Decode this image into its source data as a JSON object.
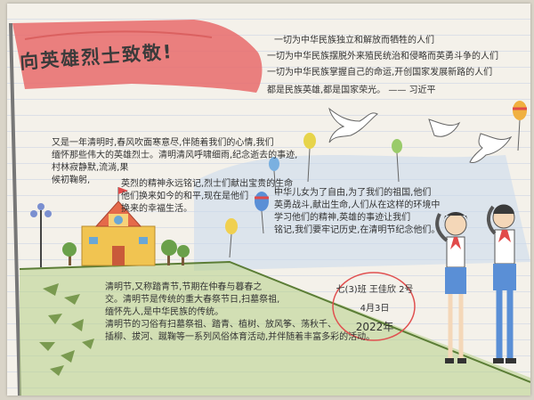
{
  "banner": {
    "title": "向英雄烈士致敬!",
    "flag_color": "#e86b6b"
  },
  "quote": {
    "lines": [
      "一切为中华民族独立和解放而牺牲的人们",
      "一切为中华民族摆脱外来殖民统治和侵略而英勇斗争的人们",
      "一切为中华民族掌握自己的命运,开创国家发展新路的人们",
      "都是民族英雄,都是国家荣光。 —— 习近平"
    ]
  },
  "left_story": {
    "lines": [
      "又是一年清明时,春风吹面寒意尽,伴随着我们的心情,我们",
      "缅怀那些伟大的英雄烈士。清明清风呼啸细雨,纪念逝去的事迹,",
      "村林寂静默,流淌,果",
      "候初鞠躬,",
      "英烈的精神永远铭记,烈士们献出宝贵的生命",
      "他们换来如今的和平,现在是他们",
      "换来的幸福生活。"
    ]
  },
  "middle_right": {
    "lines": [
      "中华儿女为了自由,为了我们的祖国,他们",
      "英勇战斗,献出生命,人们从在这样的环境中",
      "学习他们的精神,英雄的事迹让我们",
      "铭记,我们要牢记历史,在清明节纪念他们。"
    ]
  },
  "bottom_text": {
    "lines": [
      "清明节,又称踏青节,节期在仲春与暮春之",
      "交。清明节是传统的重大春祭节日,扫墓祭祖,",
      "缅怀先人,是中华民族的传统。",
      "清明节的习俗有扫墓祭祖、踏青、植树、放风筝、荡秋千、",
      "插柳、拔河、蹴鞠等一系列风俗体育活动,并伴随着丰富多彩的活动。"
    ]
  },
  "signature": {
    "class": "七(3)班 王佳欣 2号",
    "date": "4月3日",
    "year": "2022年"
  },
  "colors": {
    "ink": "#333333",
    "flag": "#e86b6b",
    "grass": "#b7cf86",
    "sky": "#c8d9ec",
    "school_wall": "#f1c451",
    "school_roof": "#e56a4a"
  }
}
